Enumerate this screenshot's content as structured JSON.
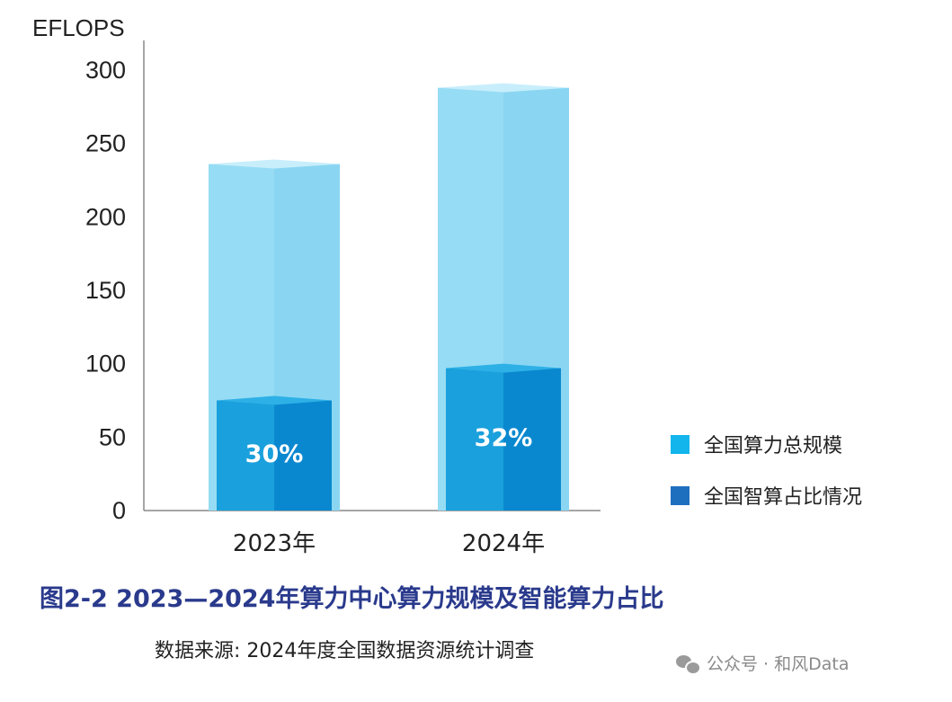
{
  "chart_data": {
    "type": "bar",
    "unit_label": "EFLOPS",
    "ylim": [
      0,
      300
    ],
    "yticks": [
      0,
      50,
      100,
      150,
      200,
      250,
      300
    ],
    "categories": [
      "2023年",
      "2024年"
    ],
    "series": [
      {
        "name": "全国算力总规模",
        "values": [
          236,
          288
        ],
        "color": "#8fdcf5"
      },
      {
        "name": "全国智算占比情况",
        "values": [
          75,
          97
        ],
        "color": "#0e8fd6"
      }
    ],
    "data_labels": [
      "30%",
      "32%"
    ],
    "legend_position": "right",
    "grid": false
  },
  "caption": "图2-2  2023—2024年算力中心算力规模及智能算力占比",
  "source": "数据来源: 2024年度全国数据资源统计调查",
  "watermark": "公众号 · 和风Data",
  "legend_colors": [
    "#12b5ec",
    "#1f6fbf"
  ]
}
